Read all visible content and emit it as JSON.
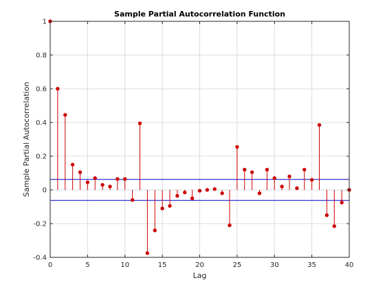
{
  "chart_data": {
    "type": "stem",
    "title": "Sample Partial Autocorrelation Function",
    "xlabel": "Lag",
    "ylabel": "Sample Partial Autocorrelation",
    "xlim": [
      0,
      40
    ],
    "ylim": [
      -0.4,
      1
    ],
    "xticks": [
      0,
      5,
      10,
      15,
      20,
      25,
      30,
      35,
      40
    ],
    "yticks": [
      -0.4,
      -0.2,
      0,
      0.2,
      0.4,
      0.6,
      0.8,
      1
    ],
    "xtick_labels": [
      "0",
      "5",
      "10",
      "15",
      "20",
      "25",
      "30",
      "35",
      "40"
    ],
    "ytick_labels": [
      "-0.4",
      "-0.2",
      "0",
      "0.2",
      "0.4",
      "0.6",
      "0.8",
      "1"
    ],
    "grid": true,
    "lags": [
      0,
      1,
      2,
      3,
      4,
      5,
      6,
      7,
      8,
      9,
      10,
      11,
      12,
      13,
      14,
      15,
      16,
      17,
      18,
      19,
      20,
      21,
      22,
      23,
      24,
      25,
      26,
      27,
      28,
      29,
      30,
      31,
      32,
      33,
      34,
      35,
      36,
      37,
      38,
      39,
      40
    ],
    "values": [
      1.0,
      0.6,
      0.445,
      0.15,
      0.105,
      0.045,
      0.07,
      0.03,
      0.02,
      0.065,
      0.065,
      -0.06,
      0.395,
      -0.375,
      -0.24,
      -0.11,
      -0.095,
      -0.035,
      -0.015,
      -0.05,
      -0.005,
      0.0,
      0.005,
      -0.02,
      -0.21,
      0.255,
      0.12,
      0.105,
      -0.02,
      0.12,
      0.07,
      0.02,
      0.08,
      0.01,
      0.12,
      0.06,
      0.385,
      -0.15,
      -0.215,
      -0.075,
      0.0
    ],
    "confidence_bounds": [
      0.062,
      -0.062
    ],
    "colors": {
      "stem": "#cc0000",
      "bounds": "#0000cc",
      "grid": "#dcdcdc",
      "axis": "#262626"
    }
  }
}
